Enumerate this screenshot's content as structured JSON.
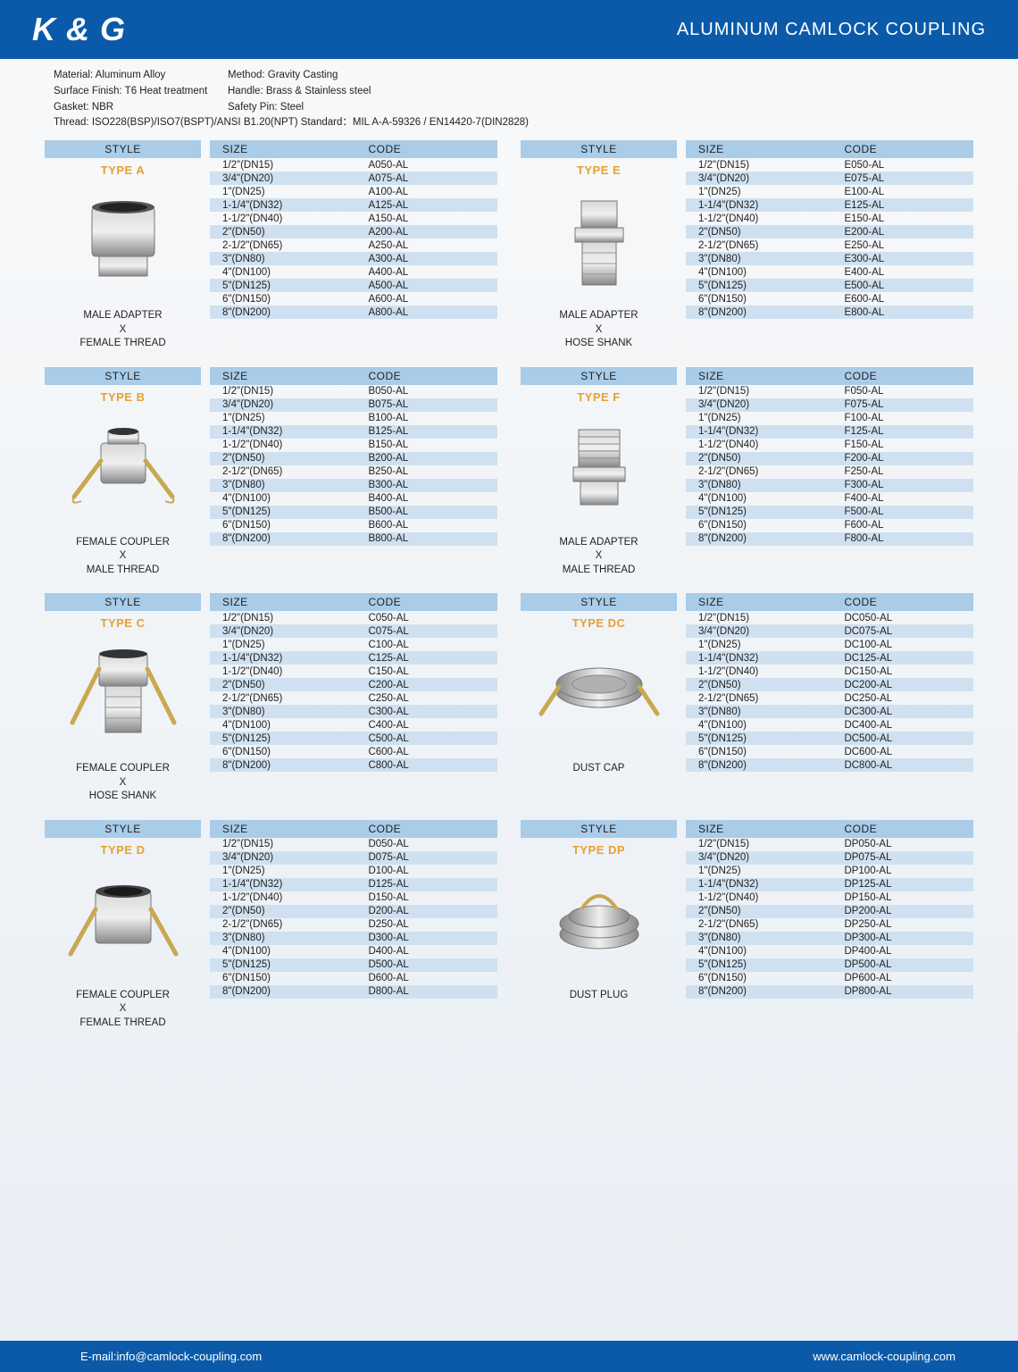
{
  "colors": {
    "header_bg": "#0b5aaa",
    "footer_bg": "#0b5aaa",
    "head_band": "#a9cce8",
    "stripe": "#cfe1f0",
    "type_label": "#e8a030",
    "text": "#222222",
    "page_bg_top": "#f8f9fa",
    "page_bg_bottom": "#e8eef4",
    "metal_light": "#d8d8d8",
    "metal_mid": "#b0b0b0",
    "metal_dark": "#888888",
    "brass": "#c8a850"
  },
  "header": {
    "logo": "K & G",
    "title": "ALUMINUM CAMLOCK COUPLING"
  },
  "specs": {
    "r1c1": "Material: Aluminum Alloy",
    "r1c2": "Method: Gravity Casting",
    "r2c1": "Surface Finish: T6 Heat treatment",
    "r2c2": "Handle: Brass & Stainless steel",
    "r3c1": "Gasket: NBR",
    "r3c2": "Safety Pin: Steel",
    "r4": "Thread: ISO228(BSP)/ISO7(BSPT)/ANSI B1.20(NPT)    Standard：MIL A-A-59326 / EN14420-7(DIN2828)"
  },
  "labels": {
    "style": "STYLE",
    "size": "SIZE",
    "code": "CODE"
  },
  "sizes": [
    "1/2\"(DN15)",
    "3/4\"(DN20)",
    "1\"(DN25)",
    "1-1/4\"(DN32)",
    "1-1/2\"(DN40)",
    "2\"(DN50)",
    "2-1/2\"(DN65)",
    "3\"(DN80)",
    "4\"(DN100)",
    "5\"(DN125)",
    "6\"(DN150)",
    "8\"(DN200)"
  ],
  "blocks": [
    {
      "type": "TYPE A",
      "desc": "MALE ADAPTER\nX\nFEMALE THREAD",
      "codes": [
        "A050-AL",
        "A075-AL",
        "A100-AL",
        "A125-AL",
        "A150-AL",
        "A200-AL",
        "A250-AL",
        "A300-AL",
        "A400-AL",
        "A500-AL",
        "A600-AL",
        "A800-AL"
      ],
      "img": "a"
    },
    {
      "type": "TYPE E",
      "desc": "MALE ADAPTER\nX\nHOSE SHANK",
      "codes": [
        "E050-AL",
        "E075-AL",
        "E100-AL",
        "E125-AL",
        "E150-AL",
        "E200-AL",
        "E250-AL",
        "E300-AL",
        "E400-AL",
        "E500-AL",
        "E600-AL",
        "E800-AL"
      ],
      "img": "e"
    },
    {
      "type": "TYPE B",
      "desc": "FEMALE COUPLER\nX\nMALE THREAD",
      "codes": [
        "B050-AL",
        "B075-AL",
        "B100-AL",
        "B125-AL",
        "B150-AL",
        "B200-AL",
        "B250-AL",
        "B300-AL",
        "B400-AL",
        "B500-AL",
        "B600-AL",
        "B800-AL"
      ],
      "img": "b"
    },
    {
      "type": "TYPE F",
      "desc": "MALE ADAPTER\nX\nMALE THREAD",
      "codes": [
        "F050-AL",
        "F075-AL",
        "F100-AL",
        "F125-AL",
        "F150-AL",
        "F200-AL",
        "F250-AL",
        "F300-AL",
        "F400-AL",
        "F500-AL",
        "F600-AL",
        "F800-AL"
      ],
      "img": "f"
    },
    {
      "type": "TYPE C",
      "desc": "FEMALE COUPLER\nX\nHOSE SHANK",
      "codes": [
        "C050-AL",
        "C075-AL",
        "C100-AL",
        "C125-AL",
        "C150-AL",
        "C200-AL",
        "C250-AL",
        "C300-AL",
        "C400-AL",
        "C500-AL",
        "C600-AL",
        "C800-AL"
      ],
      "img": "c"
    },
    {
      "type": "TYPE DC",
      "desc": "DUST CAP",
      "codes": [
        "DC050-AL",
        "DC075-AL",
        "DC100-AL",
        "DC125-AL",
        "DC150-AL",
        "DC200-AL",
        "DC250-AL",
        "DC300-AL",
        "DC400-AL",
        "DC500-AL",
        "DC600-AL",
        "DC800-AL"
      ],
      "img": "dc"
    },
    {
      "type": "TYPE D",
      "desc": "FEMALE COUPLER\nX\nFEMALE THREAD",
      "codes": [
        "D050-AL",
        "D075-AL",
        "D100-AL",
        "D125-AL",
        "D150-AL",
        "D200-AL",
        "D250-AL",
        "D300-AL",
        "D400-AL",
        "D500-AL",
        "D600-AL",
        "D800-AL"
      ],
      "img": "d"
    },
    {
      "type": "TYPE DP",
      "desc": "DUST PLUG",
      "codes": [
        "DP050-AL",
        "DP075-AL",
        "DP100-AL",
        "DP125-AL",
        "DP150-AL",
        "DP200-AL",
        "DP250-AL",
        "DP300-AL",
        "DP400-AL",
        "DP500-AL",
        "DP600-AL",
        "DP800-AL"
      ],
      "img": "dp"
    }
  ],
  "footer": {
    "email": "E-mail:info@camlock-coupling.com",
    "website": "www.camlock-coupling.com"
  }
}
